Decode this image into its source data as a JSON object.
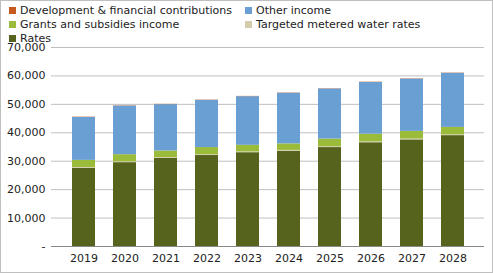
{
  "chart_data": {
    "type": "bar",
    "stacked": true,
    "grid": true,
    "legend": "top",
    "categories": [
      "2019",
      "2020",
      "2021",
      "2022",
      "2023",
      "2024",
      "2025",
      "2026",
      "2027",
      "2028"
    ],
    "series": [
      {
        "name": "Development & financial contributions",
        "color": "#c65a1e",
        "values": [
          100,
          100,
          100,
          100,
          100,
          100,
          100,
          100,
          100,
          100
        ]
      },
      {
        "name": "Other income",
        "color": "#6a9fd4",
        "values": [
          15100,
          17100,
          16300,
          16600,
          17100,
          17800,
          17600,
          18200,
          18400,
          19000
        ]
      },
      {
        "name": "Grants and subsidies income",
        "color": "#9bbb3b",
        "values": [
          2500,
          2500,
          2300,
          2500,
          2300,
          2300,
          2700,
          2700,
          2700,
          2600
        ]
      },
      {
        "name": "Targeted metered water rates",
        "color": "#d4ccaa",
        "values": [
          300,
          300,
          300,
          300,
          300,
          300,
          300,
          300,
          300,
          300
        ]
      },
      {
        "name": "Rates",
        "color": "#56631c",
        "values": [
          27500,
          29500,
          31000,
          32000,
          33000,
          33500,
          34800,
          36500,
          37500,
          39000
        ]
      }
    ],
    "ylim": [
      0,
      70000
    ],
    "yticks": [
      {
        "value": 0,
        "label": "-"
      },
      {
        "value": 10000,
        "label": "10,000"
      },
      {
        "value": 20000,
        "label": "20,000"
      },
      {
        "value": 30000,
        "label": "30,000"
      },
      {
        "value": 40000,
        "label": "40,000"
      },
      {
        "value": 50000,
        "label": "50,000"
      },
      {
        "value": 60000,
        "label": "60,000"
      },
      {
        "value": 70000,
        "label": "70,000"
      }
    ]
  }
}
